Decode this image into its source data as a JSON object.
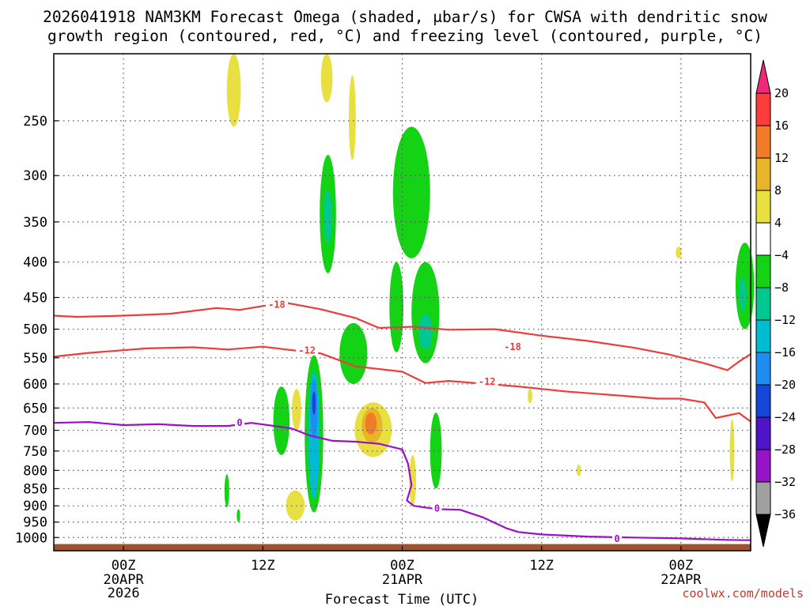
{
  "title": {
    "line1": "2026041918 NAM3KM Forecast Omega (shaded, μbar/s) for CWSA with dendritic snow",
    "line2": "growth region (contoured, red, °C) and freezing level (contoured, purple, °C)"
  },
  "credit": "coolwx.com/models",
  "chart_data": {
    "type": "heatmap",
    "title": "2026041918 NAM3KM Forecast Omega (shaded, μbar/s) for CWSA with dendritic snow growth region (contoured, red, °C) and freezing level (contoured, purple, °C)",
    "xlabel": "Forecast Time (UTC)",
    "ylabel": "",
    "x_range_hours": [
      -6,
      54
    ],
    "x_ticks": [
      {
        "hour": 0,
        "label": "00Z",
        "sub1": "20APR",
        "sub2": "2026"
      },
      {
        "hour": 12,
        "label": "12Z",
        "sub1": "",
        "sub2": ""
      },
      {
        "hour": 24,
        "label": "00Z",
        "sub1": "21APR",
        "sub2": ""
      },
      {
        "hour": 36,
        "label": "12Z",
        "sub1": "",
        "sub2": ""
      },
      {
        "hour": 48,
        "label": "00Z",
        "sub1": "22APR",
        "sub2": ""
      }
    ],
    "y_scale": "log",
    "y_range_hpa": [
      1045,
      200
    ],
    "y_ticks": [
      250,
      300,
      350,
      400,
      450,
      500,
      550,
      600,
      650,
      700,
      750,
      800,
      850,
      900,
      950,
      1000
    ],
    "grid": "dotted",
    "colorbar": {
      "levels": [
        "20",
        "16",
        "12",
        "8",
        "4",
        "−4",
        "−8",
        "−12",
        "−16",
        "−20",
        "−24",
        "−28",
        "−32",
        "−36"
      ],
      "colors": [
        "#f0287a",
        "#ff3c3c",
        "#f07c28",
        "#e8b428",
        "#e8e040",
        "#ffffff",
        "#14d214",
        "#00c890",
        "#00bcd0",
        "#1e8cf0",
        "#1446d8",
        "#5014c8",
        "#9614c8",
        "#a0a0a0",
        "#000000"
      ]
    },
    "contours": [
      {
        "name": "-18",
        "color": "#ee3b3b",
        "points": [
          [
            -6,
            478
          ],
          [
            -4,
            480
          ],
          [
            0,
            478
          ],
          [
            4,
            475
          ],
          [
            8,
            466
          ],
          [
            10,
            469
          ],
          [
            12,
            463
          ],
          [
            14,
            458
          ],
          [
            17,
            468
          ],
          [
            20,
            482
          ],
          [
            22,
            498
          ],
          [
            25,
            496
          ],
          [
            28,
            501
          ],
          [
            32,
            500
          ],
          [
            36,
            511
          ],
          [
            40,
            520
          ],
          [
            44,
            532
          ],
          [
            47,
            544
          ],
          [
            50,
            560
          ],
          [
            52,
            573
          ],
          [
            53,
            557
          ],
          [
            54,
            543
          ]
        ],
        "labels": [
          {
            "x": 13.2,
            "y": 460,
            "text": "-18"
          },
          {
            "x": 33.5,
            "y": 530,
            "text": "-18"
          }
        ]
      },
      {
        "name": "-12",
        "color": "#ee3b3b",
        "points": [
          [
            -6,
            548
          ],
          [
            -3,
            541
          ],
          [
            2,
            533
          ],
          [
            6,
            531
          ],
          [
            9,
            535
          ],
          [
            12,
            530
          ],
          [
            14,
            535
          ],
          [
            17,
            542
          ],
          [
            20,
            566
          ],
          [
            24,
            576
          ],
          [
            26,
            598
          ],
          [
            28,
            594
          ],
          [
            34,
            605
          ],
          [
            38,
            615
          ],
          [
            44,
            626
          ],
          [
            46,
            630
          ],
          [
            48,
            630
          ],
          [
            50,
            638
          ],
          [
            51,
            672
          ],
          [
            53,
            661
          ],
          [
            54,
            680
          ]
        ],
        "labels": [
          {
            "x": 15.8,
            "y": 536,
            "text": "-12"
          },
          {
            "x": 31.3,
            "y": 595,
            "text": "-12"
          }
        ]
      },
      {
        "name": "0",
        "color": "#9b11c8",
        "points": [
          [
            -6,
            683
          ],
          [
            -3,
            681
          ],
          [
            0,
            688
          ],
          [
            3,
            686
          ],
          [
            6,
            690
          ],
          [
            9,
            690
          ],
          [
            11,
            683
          ],
          [
            13,
            690
          ],
          [
            14.5,
            696
          ],
          [
            16,
            712
          ],
          [
            18,
            725
          ],
          [
            20,
            727
          ],
          [
            22,
            732
          ],
          [
            24,
            746
          ],
          [
            24.5,
            782
          ],
          [
            24.8,
            840
          ],
          [
            24.4,
            884
          ],
          [
            25,
            900
          ],
          [
            27,
            910
          ],
          [
            29,
            912
          ],
          [
            31,
            936
          ],
          [
            33,
            970
          ],
          [
            34,
            982
          ],
          [
            36,
            990
          ],
          [
            40,
            997
          ],
          [
            44,
            1000
          ],
          [
            48,
            1003
          ],
          [
            52,
            1008
          ],
          [
            54,
            1009
          ]
        ],
        "labels": [
          {
            "x": 10,
            "y": 682,
            "text": "0"
          },
          {
            "x": 27,
            "y": 907,
            "text": "0"
          },
          {
            "x": 42.5,
            "y": 1003,
            "text": "0"
          }
        ]
      }
    ],
    "shaded_regions": [
      {
        "value": 4,
        "color": "#e8e040",
        "x_center": 9.5,
        "x_half_width": 0.6,
        "p_top": 200,
        "p_bottom": 255
      },
      {
        "value": 4,
        "color": "#e8e040",
        "x_center": 17.5,
        "x_half_width": 0.5,
        "p_top": 200,
        "p_bottom": 235
      },
      {
        "value": 4,
        "color": "#e8e040",
        "x_center": 19.7,
        "x_half_width": 0.3,
        "p_top": 215,
        "p_bottom": 285
      },
      {
        "value": -4,
        "color": "#14d214",
        "x_center": 17.6,
        "x_half_width": 0.7,
        "p_top": 280,
        "p_bottom": 415
      },
      {
        "value": -8,
        "color": "#00c890",
        "x_center": 17.6,
        "x_half_width": 0.35,
        "p_top": 315,
        "p_bottom": 375
      },
      {
        "value": -4,
        "color": "#14d214",
        "x_center": 24.8,
        "x_half_width": 1.6,
        "p_top": 255,
        "p_bottom": 395
      },
      {
        "value": -4,
        "color": "#14d214",
        "x_center": 23.5,
        "x_half_width": 0.6,
        "p_top": 400,
        "p_bottom": 540
      },
      {
        "value": -4,
        "color": "#14d214",
        "x_center": 26.0,
        "x_half_width": 1.2,
        "p_top": 400,
        "p_bottom": 560
      },
      {
        "value": -8,
        "color": "#00c890",
        "x_center": 26.0,
        "x_half_width": 0.6,
        "p_top": 475,
        "p_bottom": 535
      },
      {
        "value": -4,
        "color": "#14d214",
        "x_center": 19.8,
        "x_half_width": 1.2,
        "p_top": 490,
        "p_bottom": 600
      },
      {
        "value": -4,
        "color": "#14d214",
        "x_center": 13.6,
        "x_half_width": 0.7,
        "p_top": 605,
        "p_bottom": 760
      },
      {
        "value": -4,
        "color": "#14d214",
        "x_center": 16.4,
        "x_half_width": 0.8,
        "p_top": 545,
        "p_bottom": 920
      },
      {
        "value": -12,
        "color": "#00bcd0",
        "x_center": 16.4,
        "x_half_width": 0.5,
        "p_top": 575,
        "p_bottom": 880
      },
      {
        "value": -20,
        "color": "#1e8cf0",
        "x_center": 16.4,
        "x_half_width": 0.3,
        "p_top": 590,
        "p_bottom": 720
      },
      {
        "value": -24,
        "color": "#1446d8",
        "x_center": 16.4,
        "x_half_width": 0.15,
        "p_top": 615,
        "p_bottom": 665
      },
      {
        "value": 4,
        "color": "#e8e040",
        "x_center": 21.5,
        "x_half_width": 1.6,
        "p_top": 638,
        "p_bottom": 765
      },
      {
        "value": 8,
        "color": "#e8b428",
        "x_center": 21.4,
        "x_half_width": 0.9,
        "p_top": 650,
        "p_bottom": 730
      },
      {
        "value": 12,
        "color": "#f07c28",
        "x_center": 21.3,
        "x_half_width": 0.5,
        "p_top": 660,
        "p_bottom": 710
      },
      {
        "value": 4,
        "color": "#e8e040",
        "x_center": 14.9,
        "x_half_width": 0.4,
        "p_top": 610,
        "p_bottom": 700
      },
      {
        "value": 4,
        "color": "#e8e040",
        "x_center": 24.9,
        "x_half_width": 0.3,
        "p_top": 760,
        "p_bottom": 900
      },
      {
        "value": -4,
        "color": "#14d214",
        "x_center": 26.9,
        "x_half_width": 0.5,
        "p_top": 660,
        "p_bottom": 850
      },
      {
        "value": 4,
        "color": "#e8e040",
        "x_center": 14.8,
        "x_half_width": 0.8,
        "p_top": 855,
        "p_bottom": 945
      },
      {
        "value": -4,
        "color": "#14d214",
        "x_center": 8.9,
        "x_half_width": 0.2,
        "p_top": 810,
        "p_bottom": 905
      },
      {
        "value": -4,
        "color": "#14d214",
        "x_center": 9.9,
        "x_half_width": 0.15,
        "p_top": 910,
        "p_bottom": 950
      },
      {
        "value": -4,
        "color": "#14d214",
        "x_center": 53.5,
        "x_half_width": 0.8,
        "p_top": 375,
        "p_bottom": 500
      },
      {
        "value": -8,
        "color": "#00c890",
        "x_center": 53.3,
        "x_half_width": 0.3,
        "p_top": 420,
        "p_bottom": 470
      },
      {
        "value": 4,
        "color": "#e8e040",
        "x_center": 52.4,
        "x_half_width": 0.2,
        "p_top": 675,
        "p_bottom": 830
      },
      {
        "value": 4,
        "color": "#e8e040",
        "x_center": 47.8,
        "x_half_width": 0.25,
        "p_top": 380,
        "p_bottom": 395
      },
      {
        "value": 4,
        "color": "#e8e040",
        "x_center": 39.2,
        "x_half_width": 0.2,
        "p_top": 785,
        "p_bottom": 815
      },
      {
        "value": 4,
        "color": "#e8e040",
        "x_center": 35.0,
        "x_half_width": 0.2,
        "p_top": 610,
        "p_bottom": 640
      }
    ],
    "terrain": {
      "color": "#a0522d",
      "p_top": 1022
    }
  }
}
